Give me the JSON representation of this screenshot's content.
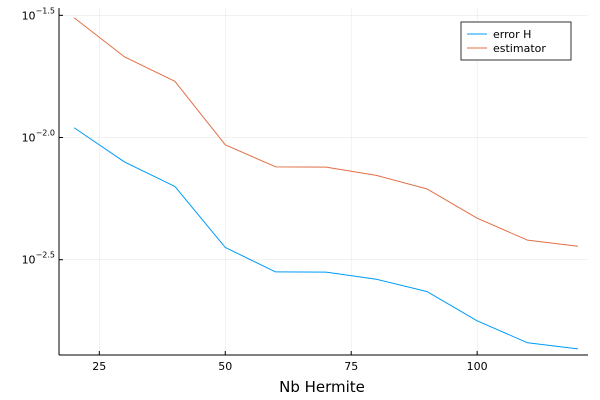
{
  "chart_data": {
    "type": "line",
    "title": "",
    "xlabel": "Nb Hermite",
    "ylabel": "",
    "yscale": "log10",
    "grid": true,
    "legend_position": "top-right",
    "xlim": [
      17,
      122
    ],
    "ylim_log10": [
      -2.89,
      -1.47
    ],
    "xticks": [
      25,
      50,
      75,
      100
    ],
    "yticks": [
      {
        "value": -1.5,
        "base": "10",
        "exponent": "−1.5"
      },
      {
        "value": -2.0,
        "base": "10",
        "exponent": "−2.0"
      },
      {
        "value": -2.5,
        "base": "10",
        "exponent": "−2.5"
      }
    ],
    "x": [
      20,
      30,
      40,
      50,
      60,
      70,
      80,
      90,
      100,
      110,
      120
    ],
    "series": [
      {
        "name": "error H",
        "color": "#009AFA",
        "values_log10": [
          -1.96,
          -2.1,
          -2.2,
          -2.45,
          -2.55,
          -2.551,
          -2.58,
          -2.63,
          -2.75,
          -2.84,
          -2.865
        ]
      },
      {
        "name": "estimator",
        "color": "#E26F46",
        "values_log10": [
          -1.51,
          -1.67,
          -1.77,
          -2.03,
          -2.12,
          -2.121,
          -2.155,
          -2.21,
          -2.33,
          -2.42,
          -2.445
        ]
      }
    ]
  }
}
